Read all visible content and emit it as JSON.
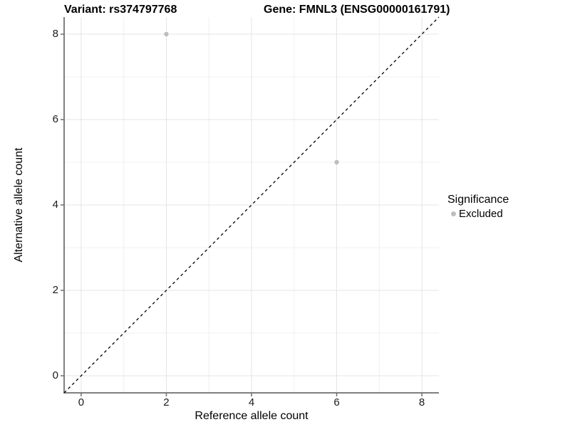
{
  "chart_data": {
    "type": "scatter",
    "title": "Variant: rs374797768    Gene: FMNL3 (ENSG00000161791)",
    "titles": {
      "left": "Variant: rs374797768",
      "right": "Gene: FMNL3 (ENSG00000161791)"
    },
    "xlabel": "Reference allele count",
    "ylabel": "Alternative allele count",
    "xlim": [
      -0.4,
      8.4
    ],
    "ylim": [
      -0.4,
      8.4
    ],
    "x_ticks": [
      0,
      2,
      4,
      6,
      8
    ],
    "y_ticks": [
      0,
      2,
      4,
      6,
      8
    ],
    "grid": "major and minor gridlines on, light grey on white",
    "series": [
      {
        "name": "Excluded",
        "color": "#bebebe",
        "points": [
          {
            "x": 2,
            "y": 8
          },
          {
            "x": 6,
            "y": 5
          }
        ]
      }
    ],
    "reference_line": {
      "kind": "identity (y = x)",
      "style": "dashed",
      "color": "#000000"
    },
    "legend": {
      "position": "right",
      "title": "Significance",
      "entries": [
        {
          "label": "Excluded",
          "color": "#bebebe"
        }
      ]
    },
    "colors": {
      "axis_line": "#808080",
      "tick_mark": "#6e6e6e",
      "grid_major": "#e4e4e4",
      "grid_minor": "#f0f0f0",
      "background": "#ffffff",
      "text": "#000000"
    }
  }
}
